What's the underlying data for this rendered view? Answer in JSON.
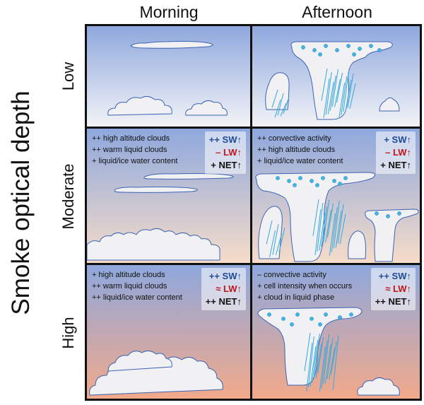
{
  "y_axis_label": "Smoke optical depth",
  "columns": [
    "Morning",
    "Afternoon"
  ],
  "rows": [
    "Low",
    "Moderate",
    "High"
  ],
  "panels": {
    "moderate_morning": {
      "effects": [
        "++ high altitude clouds",
        "++ warm liquid clouds",
        "+ liquid/ice water content"
      ],
      "sw": "++ SW↑",
      "lw": "– LW↑",
      "net": "+ NET↑"
    },
    "moderate_afternoon": {
      "effects": [
        "++ convective activity",
        "++ high altitude clouds",
        "+ liquid/ice water content"
      ],
      "sw": "+ SW↑",
      "lw": "– LW↑",
      "net": "+ NET↑"
    },
    "high_morning": {
      "effects": [
        "+ high altitude clouds",
        "++ warm liquid clouds",
        "++ liquid/ice water content"
      ],
      "sw": "++ SW↑",
      "lw": "≈ LW↑",
      "net": "++ NET↑"
    },
    "high_afternoon": {
      "effects": [
        "– convective activity",
        "+ cell intensity when occurs",
        "+ cloud in liquid phase"
      ],
      "sw": "++ SW↑",
      "lw": "≈ LW↑",
      "net": "++ NET↑"
    }
  },
  "colors": {
    "sky_top": "#8ea8dd",
    "sky_low_bottom": "#f2f3f7",
    "sky_moderate_bottom": "#f6dcc9",
    "sky_high_bottom": "#f2a98a",
    "cloud_fill": "#f1f1f3",
    "cloud_outline": "#3c63b4",
    "rain": "#35a7dd",
    "ice": "#3cb6e6",
    "sw_text": "#1f4b99",
    "lw_text": "#c0161b"
  }
}
